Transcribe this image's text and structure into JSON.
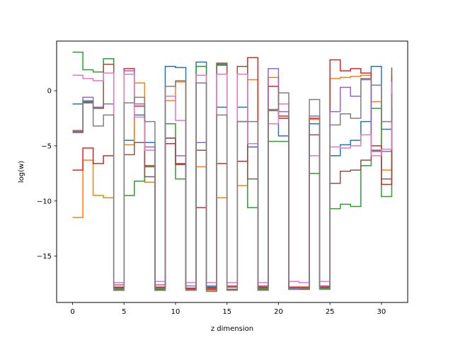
{
  "chart_data": {
    "type": "line",
    "drawstyle": "steps-post",
    "title": "",
    "xlabel": "z dimension",
    "ylabel": "log(w)",
    "xlim": [
      -1.55,
      32.55
    ],
    "ylim": [
      -19.2,
      4.5
    ],
    "xticks": [
      0,
      5,
      10,
      15,
      20,
      25,
      30
    ],
    "yticks": [
      -15,
      -10,
      -5,
      0
    ],
    "ytick_labels": [
      "−15",
      "−10",
      "−5",
      "0"
    ],
    "grid": false,
    "legend": false,
    "x": [
      0,
      1,
      2,
      3,
      4,
      5,
      6,
      7,
      8,
      9,
      10,
      11,
      12,
      13,
      14,
      15,
      16,
      17,
      18,
      19,
      20,
      21,
      22,
      23,
      24,
      25,
      26,
      27,
      28,
      29,
      30,
      31
    ],
    "series": [
      {
        "color": "#1f77b4",
        "values": [
          -1.2,
          -1.0,
          -1.5,
          -1.2,
          -17.8,
          -4.5,
          -2.2,
          -4.7,
          -17.8,
          2.2,
          2.1,
          -17.9,
          2.6,
          -17.8,
          -1.5,
          -17.8,
          -1.5,
          -5.1,
          -17.8,
          -3.0,
          -4.1,
          -17.9,
          -17.9,
          -3.0,
          -17.9,
          -5.9,
          -4.9,
          -4.5,
          -2.8,
          2.2,
          -3.5,
          -1.6
        ]
      },
      {
        "color": "#ff7f0e",
        "values": [
          -11.5,
          -6.3,
          -9.5,
          -9.7,
          -18.1,
          -4.9,
          0.7,
          -8.3,
          -18.1,
          -0.9,
          0.8,
          -18.0,
          -6.9,
          -18.1,
          -9.7,
          -18.0,
          -8.6,
          1.0,
          -18.0,
          1.2,
          -2.5,
          -17.9,
          -17.9,
          -2.6,
          -17.9,
          1.1,
          1.2,
          1.3,
          1.4,
          -1.0,
          -7.2,
          -1.7
        ]
      },
      {
        "color": "#2ca02c",
        "values": [
          3.5,
          1.9,
          1.7,
          2.9,
          -18.0,
          -9.5,
          -8.2,
          -6.9,
          -17.9,
          -3.0,
          -8.0,
          -17.9,
          2.2,
          -17.9,
          2.4,
          -18.0,
          -2.8,
          -10.6,
          -17.9,
          -4.6,
          -4.6,
          -18.0,
          -18.0,
          -7.5,
          -17.9,
          -10.7,
          -10.3,
          -10.5,
          -6.8,
          -1.6,
          -9.6,
          1.4
        ]
      },
      {
        "color": "#d62728",
        "values": [
          -7.2,
          -5.2,
          -6.6,
          -5.9,
          -17.8,
          2.0,
          -1.4,
          -6.8,
          -17.8,
          -4.8,
          -6.7,
          -17.9,
          -10.6,
          -17.9,
          -6.6,
          -17.8,
          -6.4,
          3.0,
          -17.8,
          0.4,
          -2.3,
          -17.8,
          -17.8,
          -2.5,
          -17.8,
          2.8,
          1.8,
          2.0,
          1.6,
          -5.0,
          -8.5,
          -1.5
        ]
      },
      {
        "color": "#9467bd",
        "values": [
          -3.8,
          -0.6,
          -1.5,
          -1.2,
          -17.6,
          1.8,
          -1.2,
          -5.1,
          -17.6,
          -4.3,
          -5.9,
          -17.7,
          -4.7,
          -17.7,
          2.3,
          -17.7,
          -2.8,
          -4.8,
          -17.7,
          2.0,
          -1.9,
          -17.9,
          -17.9,
          -2.3,
          -17.7,
          -1.9,
          0.3,
          -0.5,
          1.0,
          -5.5,
          -5.5,
          0.7
        ]
      },
      {
        "color": "#8c564b",
        "values": [
          -3.7,
          -1.1,
          -1.6,
          2.4,
          -17.9,
          -5.8,
          -4.7,
          -7.8,
          -18.0,
          -4.3,
          -6.6,
          -18.0,
          -5.4,
          -18.0,
          2.5,
          -18.0,
          2.2,
          -8.0,
          -18.0,
          -1.8,
          -2.5,
          -18.0,
          -18.0,
          -4.0,
          -18.0,
          -8.4,
          -7.3,
          -7.2,
          -6.3,
          -5.4,
          -8.0,
          2.1
        ]
      },
      {
        "color": "#e377c2",
        "values": [
          1.4,
          1.1,
          0.9,
          1.6,
          -17.4,
          1.5,
          -2.4,
          -5.4,
          -17.3,
          -0.5,
          -2.7,
          -17.4,
          1.4,
          -17.4,
          1.5,
          -17.4,
          1.5,
          -4.8,
          -17.4,
          -3.0,
          -1.2,
          -17.3,
          -17.4,
          -5.9,
          -17.3,
          -5.1,
          -5.2,
          -5.0,
          -4.0,
          -5.9,
          -5.3,
          0.8
        ]
      },
      {
        "color": "#7f7f7f",
        "values": [
          -3.6,
          -0.9,
          -3.2,
          -2.2,
          -18.1,
          -1.1,
          -0.6,
          -2.8,
          -18.1,
          0.4,
          0.9,
          -18.1,
          0.7,
          -18.2,
          -2.2,
          -18.1,
          -2.8,
          -2.8,
          -18.1,
          -1.7,
          -0.2,
          -18.0,
          -17.9,
          -0.8,
          -18.0,
          -3.1,
          -2.1,
          -2.5,
          1.1,
          0.5,
          -2.8,
          -0.3
        ]
      }
    ]
  }
}
